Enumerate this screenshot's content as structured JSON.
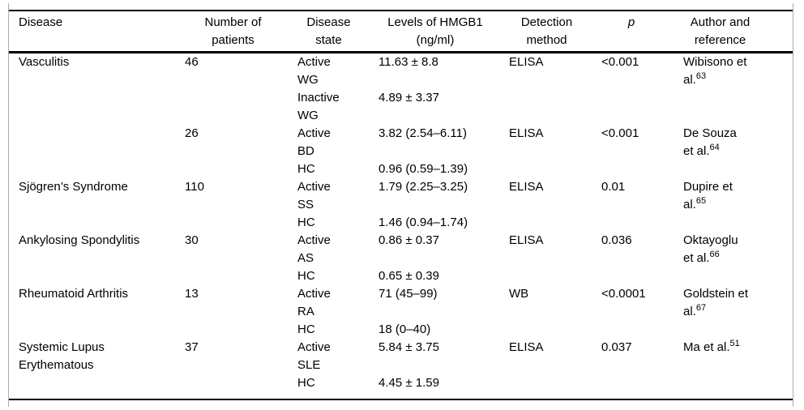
{
  "table": {
    "headers": {
      "disease": "Disease",
      "patients": "Number of\npatients",
      "state": "Disease\nstate",
      "levels": "Levels of HMGB1\n(ng/ml)",
      "method": "Detection\nmethod",
      "p": "p",
      "author": "Author and\nreference"
    },
    "rows": [
      {
        "disease": "Vasculitis",
        "patients": "46",
        "state": "Active\nWG",
        "level": "11.63 ± 8.8",
        "method": "ELISA",
        "p": "<0.001",
        "author": "Wibisono et\nal.",
        "ref": "63"
      },
      {
        "disease": "",
        "patients": "",
        "state": "Inactive\nWG",
        "level": "4.89 ± 3.37",
        "method": "",
        "p": "",
        "author": "",
        "ref": ""
      },
      {
        "disease": "",
        "patients": "26",
        "state": "Active\nBD",
        "level": "3.82 (2.54–6.11)",
        "method": "ELISA",
        "p": "<0.001",
        "author": "De Souza\net al.",
        "ref": "64"
      },
      {
        "disease": "",
        "patients": "",
        "state": "HC",
        "level": "0.96 (0.59–1.39)",
        "method": "",
        "p": "",
        "author": "",
        "ref": ""
      },
      {
        "disease": "Sjögren’s Syndrome",
        "patients": "110",
        "state": "Active\nSS",
        "level": "1.79 (2.25–3.25)",
        "method": "ELISA",
        "p": "0.01",
        "author": "Dupire et\nal.",
        "ref": "65"
      },
      {
        "disease": "",
        "patients": "",
        "state": "HC",
        "level": "1.46 (0.94–1.74)",
        "method": "",
        "p": "",
        "author": "",
        "ref": ""
      },
      {
        "disease": "Ankylosing Spondylitis",
        "patients": "30",
        "state": "Active\nAS",
        "level": "0.86 ± 0.37",
        "method": "ELISA",
        "p": "0.036",
        "author": "Oktayoglu\net al.",
        "ref": "66"
      },
      {
        "disease": "",
        "patients": "",
        "state": "HC",
        "level": "0.65 ± 0.39",
        "method": "",
        "p": "",
        "author": "",
        "ref": ""
      },
      {
        "disease": "Rheumatoid Arthritis",
        "patients": "13",
        "state": "Active\nRA",
        "level": "71 (45–99)",
        "method": "WB",
        "p": "<0.0001",
        "author": "Goldstein et\nal.",
        "ref": "67"
      },
      {
        "disease": "",
        "patients": "",
        "state": "HC",
        "level": "18 (0–40)",
        "method": "",
        "p": "",
        "author": "",
        "ref": ""
      },
      {
        "disease": "Systemic Lupus\nErythematous",
        "patients": "37",
        "state": "Active\nSLE",
        "level": "5.84 ± 3.75",
        "method": "ELISA",
        "p": "0.037",
        "author": "Ma et al.",
        "ref": "51"
      },
      {
        "disease": "",
        "patients": "",
        "state": "HC",
        "level": "4.45 ± 1.59",
        "method": "",
        "p": "",
        "author": "",
        "ref": ""
      }
    ]
  }
}
